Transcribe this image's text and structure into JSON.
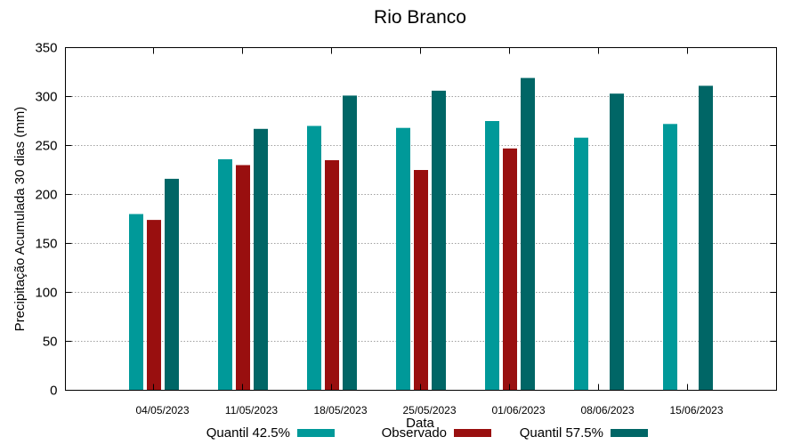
{
  "chart_data": {
    "type": "bar",
    "title": "Rio Branco",
    "xlabel": "Data",
    "ylabel": "Precipitação Acumulada 30 dias (mm)",
    "ylim": [
      0,
      350
    ],
    "yticks": [
      0,
      50,
      100,
      150,
      200,
      250,
      300,
      350
    ],
    "grid": true,
    "legend_position": "bottom",
    "categories": [
      "04/05/2023",
      "11/05/2023",
      "18/05/2023",
      "25/05/2023",
      "01/06/2023",
      "08/06/2023",
      "15/06/2023"
    ],
    "series": [
      {
        "name": "Quantil 42.5%",
        "color": "#009999",
        "values": [
          180,
          236,
          270,
          268,
          275,
          258,
          272
        ]
      },
      {
        "name": "Observado",
        "color": "#990f0f",
        "values": [
          174,
          230,
          235,
          225,
          247,
          null,
          null
        ]
      },
      {
        "name": "Quantil 57.5%",
        "color": "#006666",
        "values": [
          216,
          267,
          301,
          306,
          319,
          303,
          311
        ]
      }
    ]
  }
}
